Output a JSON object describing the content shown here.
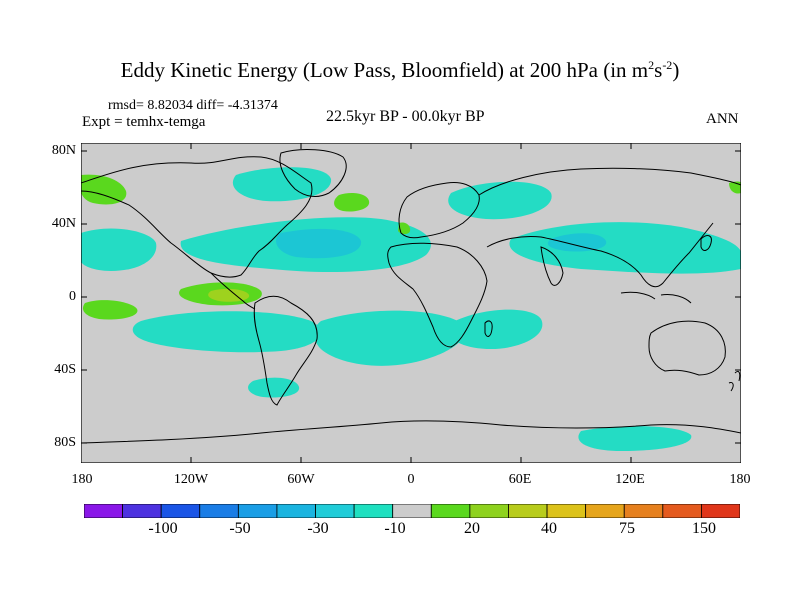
{
  "title": {
    "main": "Eddy Kinetic Energy (Low Pass, Bloomfield) at 200 hPa (in m",
    "sup1": "2",
    "mid": "s",
    "sup2": "-2",
    "close": ")"
  },
  "stats": "rmsd= 8.82034 diff= -4.31374",
  "expt": "Expt = temhx-temga",
  "period": "22.5kyr BP - 00.0kyr BP",
  "season": "ANN",
  "lat_labels": [
    "80N",
    "40N",
    "0",
    "40S",
    "80S"
  ],
  "lon_labels": [
    "180",
    "120W",
    "60W",
    "0",
    "60E",
    "120E",
    "180"
  ],
  "colorbar": {
    "colors": [
      "#8a17e8",
      "#4d32e0",
      "#1a55e6",
      "#1a7de6",
      "#1a9ee6",
      "#1ab4e0",
      "#20ccd8",
      "#1ee0c0",
      "#cccccc",
      "#5ad81e",
      "#8ed21e",
      "#b8cc1c",
      "#dcc21a",
      "#e6a51c",
      "#e6801e",
      "#e45a1e",
      "#e0361a"
    ],
    "labels": [
      "-100",
      "-50",
      "-30",
      "-10",
      "20",
      "40",
      "75",
      "150"
    ]
  },
  "map_colors": {
    "land_bg": "#cccccc",
    "negative_light": "#24dcc4",
    "negative_mid": "#1cc6d4",
    "negative_strong": "#22b0dc",
    "positive_light": "#5ad81e",
    "positive_mid": "#9ed21e",
    "positive_strong": "#ddc41a"
  }
}
